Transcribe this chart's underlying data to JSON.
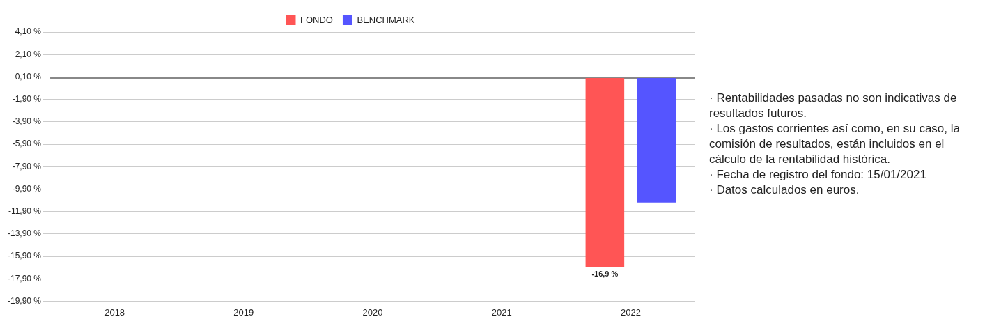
{
  "chart_data": {
    "type": "bar",
    "categories": [
      "2018",
      "2019",
      "2020",
      "2021",
      "2022"
    ],
    "series": [
      {
        "name": "FONDO",
        "color": "#ff5555",
        "values": [
          null,
          null,
          null,
          null,
          -16.9
        ],
        "value_labels": [
          null,
          null,
          null,
          null,
          "-16,9 %"
        ]
      },
      {
        "name": "BENCHMARK",
        "color": "#5555ff",
        "values": [
          null,
          null,
          null,
          null,
          -11.1
        ]
      }
    ],
    "ylim": [
      -19.9,
      4.1
    ],
    "yticks": [
      {
        "value": 4.1,
        "label": "4,10 %"
      },
      {
        "value": 2.1,
        "label": "2,10 %"
      },
      {
        "value": 0.1,
        "label": "0,10 %"
      },
      {
        "value": -1.9,
        "label": "-1,90 %"
      },
      {
        "value": -3.9,
        "label": "-3,90 %"
      },
      {
        "value": -5.9,
        "label": "-5,90 %"
      },
      {
        "value": -7.9,
        "label": "-7,90 %"
      },
      {
        "value": -9.9,
        "label": "-9,90 %"
      },
      {
        "value": -11.9,
        "label": "-11,90 %"
      },
      {
        "value": -13.9,
        "label": "-13,90 %"
      },
      {
        "value": -15.9,
        "label": "-15,90 %"
      },
      {
        "value": -17.9,
        "label": "-17,90 %"
      },
      {
        "value": -19.9,
        "label": "-19,90 %"
      }
    ],
    "ref_lines": [
      {
        "axis": "y",
        "value": 0,
        "color": "#888888"
      }
    ],
    "grid": "y",
    "legend": "top",
    "annotations": [
      "· Rentabilidades pasadas no son indicativas de resultados futuros.",
      "· Los gastos corrientes así como, en su caso, la comisión de resultados, están incluidos en el cálculo de la rentabilidad histórica.",
      "· Fecha de registro del fondo: 15/01/2021",
      "· Datos calculados en euros."
    ]
  }
}
